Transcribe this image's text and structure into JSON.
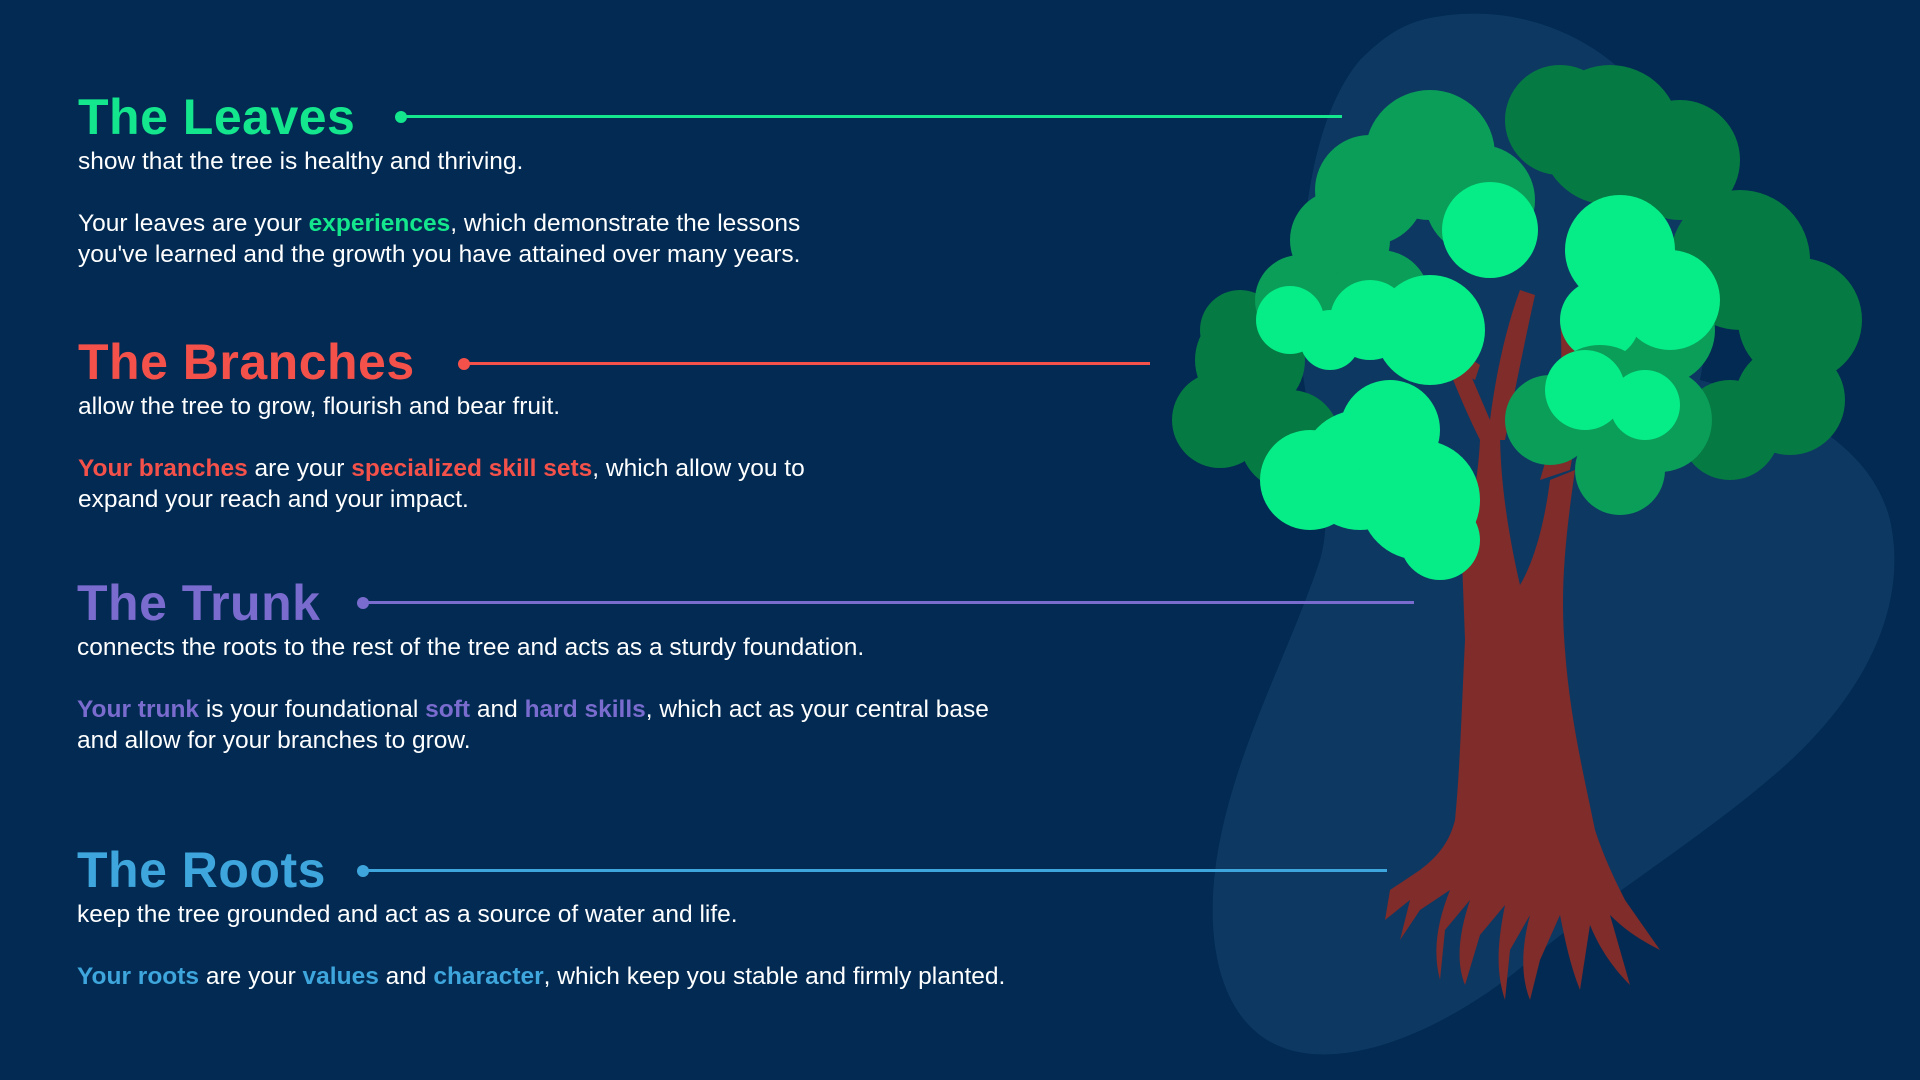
{
  "colors": {
    "background": "#022a52",
    "blob": "#0e3a62",
    "leaves": "#13e68c",
    "branches": "#f4514a",
    "trunk": "#7a6ccf",
    "roots": "#3ea6dc",
    "tree_trunk": "#7f2c2a",
    "foliage_dark": "#067a43",
    "foliage_mid": "#0a9e58",
    "foliage_light": "#06ec86"
  },
  "illustration": {
    "name": "tree-illustration"
  },
  "sections": {
    "leaves": {
      "title": "The Leaves",
      "subtitle": "show that the tree is healthy and thriving.",
      "body": {
        "t1": "Your leaves are your ",
        "h1": "experiences",
        "t2": ", which demonstrate the lessons",
        "t3": "you've learned and the growth you have attained over many years."
      }
    },
    "branches": {
      "title": "The Branches",
      "subtitle": "allow the tree to grow, flourish and bear fruit.",
      "body": {
        "h1": "Your branches",
        "t1": " are your ",
        "h2": "specialized skill sets",
        "t2": ", which allow you to",
        "t3": "expand your reach and your impact."
      }
    },
    "trunk": {
      "title": "The Trunk",
      "subtitle": "connects the roots to the rest of the tree and acts as a sturdy foundation.",
      "body": {
        "h1": "Your trunk",
        "t1": " is your foundational ",
        "h2": "soft",
        "t2": " and ",
        "h3": "hard skills",
        "t3": ", which act as your central base",
        "t4": "and allow for your branches to grow."
      }
    },
    "roots": {
      "title": "The Roots",
      "subtitle": "keep the tree grounded and act as a source of water and life.",
      "body": {
        "h1": "Your roots",
        "t1": " are your ",
        "h2": "values",
        "t2": " and ",
        "h3": "character",
        "t3": ", which keep you stable and firmly planted."
      }
    }
  }
}
